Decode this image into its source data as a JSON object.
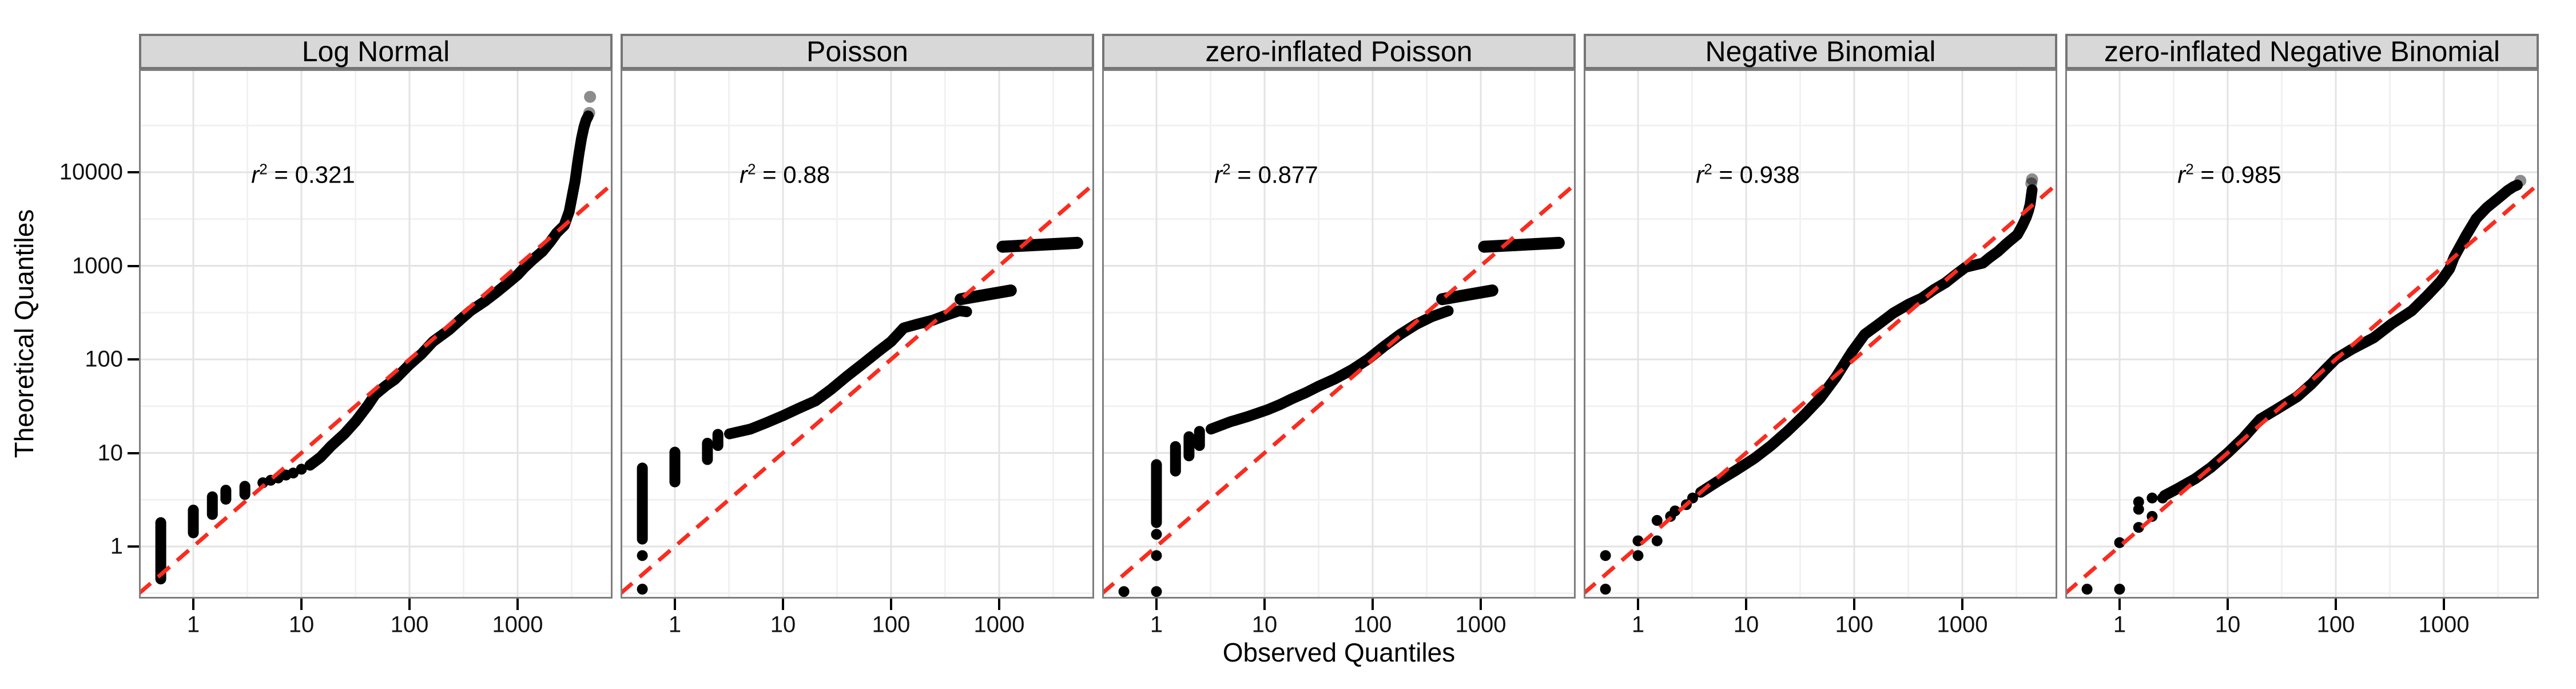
{
  "figure": {
    "x_axis_title": "Observed Quantiles",
    "y_axis_title": "Theoretical Quantiles"
  },
  "chart_data": {
    "type": "scatter",
    "subtype": "qq-plot-faceted",
    "grid": "on",
    "background": "white",
    "x_axis": {
      "title": "Observed Quantiles",
      "scale": "log10",
      "ticks": [
        1,
        10,
        100,
        1000
      ],
      "tick_labels": [
        "1",
        "10",
        "100",
        "1000"
      ],
      "range": [
        0.31,
        7550
      ]
    },
    "y_axis": {
      "title": "Theoretical Quantiles",
      "scale": "log10",
      "ticks": [
        1,
        10,
        100,
        1000,
        10000
      ],
      "tick_labels": [
        "1",
        "10",
        "100",
        "1000",
        "10000"
      ],
      "range": [
        0.28,
        126000
      ]
    },
    "reference_line": {
      "type": "identity y=x",
      "style": "dashed",
      "color": "#F92C1F"
    },
    "r2_template": {
      "var": "r",
      "sup": "2",
      "sep": " = "
    },
    "colors": {
      "point": "#000000",
      "ref_line": "#F92C1F",
      "strip_fill": "#D8D8D8",
      "strip_border": "#757575",
      "panel_border": "#7E7E7E",
      "grid_major": "#E3E3E3",
      "grid_minor": "#F1F1F1"
    },
    "panels": [
      {
        "label": "Log Normal",
        "r2": "0.321",
        "columns": [
          [
            0.5,
            0.45,
            1.8
          ],
          [
            1,
            1.4,
            2.45
          ],
          [
            1.5,
            2.2,
            3.4
          ],
          [
            2,
            3.2,
            4.0
          ],
          [
            3,
            3.6,
            4.4
          ]
        ],
        "dots": [
          [
            4.4,
            4.8
          ],
          [
            5.2,
            5.1
          ],
          [
            6.1,
            5.4
          ],
          [
            7.2,
            5.8
          ],
          [
            8.4,
            6.1
          ],
          [
            10,
            6.7
          ]
        ],
        "curve": [
          [
            12,
            7.4
          ],
          [
            15,
            9
          ],
          [
            19,
            12
          ],
          [
            25,
            16
          ],
          [
            32,
            22
          ],
          [
            41,
            32
          ],
          [
            48,
            42
          ],
          [
            60,
            52
          ],
          [
            73,
            61
          ],
          [
            100,
            88
          ],
          [
            130,
            115
          ],
          [
            165,
            155
          ],
          [
            230,
            205
          ],
          [
            300,
            270
          ],
          [
            368,
            331
          ],
          [
            500,
            420
          ],
          [
            650,
            530
          ],
          [
            832,
            670
          ],
          [
            1000,
            800
          ],
          [
            1150,
            955
          ],
          [
            1400,
            1180
          ],
          [
            1700,
            1430
          ],
          [
            2000,
            1800
          ],
          [
            2300,
            2250
          ],
          [
            2700,
            2700
          ],
          [
            3000,
            3800
          ],
          [
            3200,
            5600
          ],
          [
            3400,
            8000
          ],
          [
            3550,
            11500
          ],
          [
            3700,
            16000
          ],
          [
            3900,
            23000
          ],
          [
            4100,
            30000
          ],
          [
            4300,
            36000
          ],
          [
            4500,
            40000
          ]
        ],
        "segments": [],
        "fade_dots": [
          [
            4600,
            43000
          ],
          [
            4680,
            64000
          ]
        ]
      },
      {
        "label": "Poisson",
        "r2": "0.88",
        "columns": [
          [
            0.5,
            1.2,
            6.9
          ],
          [
            1,
            4.9,
            10.2
          ],
          [
            2,
            8.5,
            12.7
          ],
          [
            2.5,
            12,
            15.8
          ]
        ],
        "dots": [
          [
            0.5,
            0.35
          ],
          [
            0.5,
            0.8
          ]
        ],
        "curve": [
          [
            3.2,
            16
          ],
          [
            5,
            18
          ],
          [
            7,
            21
          ],
          [
            10,
            25
          ],
          [
            14,
            30
          ],
          [
            20,
            36
          ],
          [
            28,
            48
          ],
          [
            39,
            66
          ],
          [
            55,
            90
          ],
          [
            75,
            120
          ],
          [
            100,
            155
          ],
          [
            131,
            217
          ],
          [
            180,
            240
          ],
          [
            240,
            261
          ],
          [
            320,
            295
          ],
          [
            427,
            331
          ],
          [
            500,
            323
          ]
        ],
        "segments": [
          [
            440,
            440,
            1280,
            545
          ],
          [
            1075,
            1600,
            5270,
            1760
          ]
        ],
        "fade_dots": []
      },
      {
        "label": "zero-inflated Poisson",
        "r2": "0.877",
        "columns": [
          [
            1,
            1.8,
            7.5
          ],
          [
            1.5,
            6.4,
            11.7
          ],
          [
            2,
            9.3,
            14.9
          ],
          [
            2.5,
            12,
            17
          ]
        ],
        "dots": [
          [
            0.5,
            0.33
          ],
          [
            1,
            0.33
          ],
          [
            1,
            0.8
          ],
          [
            1,
            1.35
          ]
        ],
        "curve": [
          [
            3.2,
            18
          ],
          [
            4.8,
            21.5
          ],
          [
            7,
            24.5
          ],
          [
            10.7,
            29
          ],
          [
            14,
            33
          ],
          [
            18,
            38
          ],
          [
            24,
            44
          ],
          [
            32,
            52
          ],
          [
            45,
            62
          ],
          [
            65,
            78
          ],
          [
            90,
            100
          ],
          [
            130,
            140
          ],
          [
            180,
            185
          ],
          [
            250,
            235
          ],
          [
            350,
            285
          ],
          [
            480,
            325
          ],
          [
            500,
            330
          ]
        ],
        "segments": [
          [
            440,
            440,
            1280,
            545
          ],
          [
            1075,
            1600,
            5270,
            1760
          ]
        ],
        "fade_dots": []
      },
      {
        "label": "Negative Binomial",
        "r2": "0.938",
        "columns": [],
        "dots": [
          [
            0.5,
            0.35
          ],
          [
            0.5,
            0.8
          ],
          [
            1,
            0.8
          ],
          [
            1,
            1.15
          ],
          [
            1.5,
            1.15
          ],
          [
            1.5,
            1.9
          ],
          [
            2,
            2.1
          ],
          [
            2.2,
            2.4
          ],
          [
            2.8,
            2.8
          ],
          [
            3.2,
            3.3
          ]
        ],
        "curve": [
          [
            3.8,
            3.8
          ],
          [
            5.5,
            5
          ],
          [
            8,
            6.5
          ],
          [
            12,
            8.8
          ],
          [
            17,
            12
          ],
          [
            24,
            17
          ],
          [
            34,
            25
          ],
          [
            48,
            38
          ],
          [
            68,
            65
          ],
          [
            95,
            120
          ],
          [
            125,
            185
          ],
          [
            170,
            240
          ],
          [
            230,
            313
          ],
          [
            320,
            390
          ],
          [
            420,
            450
          ],
          [
            550,
            560
          ],
          [
            700,
            660
          ],
          [
            900,
            830
          ],
          [
            1070,
            966
          ],
          [
            1300,
            1020
          ],
          [
            1550,
            1070
          ],
          [
            1800,
            1230
          ],
          [
            2130,
            1420
          ],
          [
            2600,
            1750
          ],
          [
            3230,
            2150
          ],
          [
            3600,
            2700
          ],
          [
            3900,
            3290
          ],
          [
            4100,
            3900
          ],
          [
            4240,
            4550
          ],
          [
            4360,
            5790
          ],
          [
            4420,
            6500
          ]
        ],
        "segments": [],
        "fade_dots": [
          [
            4350,
            7600
          ],
          [
            4420,
            8400
          ]
        ]
      },
      {
        "label": "zero-inflated Negative Binomial",
        "r2": "0.985",
        "columns": [],
        "dots": [
          [
            0.5,
            0.35
          ],
          [
            1,
            0.35
          ],
          [
            1,
            1.1
          ],
          [
            1.5,
            1.6
          ],
          [
            1.5,
            2.5
          ],
          [
            1.5,
            3.0
          ],
          [
            2,
            2.1
          ],
          [
            2,
            3.3
          ],
          [
            2.5,
            3.3
          ]
        ],
        "curve": [
          [
            2.6,
            3.5
          ],
          [
            3.5,
            4.2
          ],
          [
            5,
            5.3
          ],
          [
            7,
            7
          ],
          [
            10,
            10
          ],
          [
            14,
            14.5
          ],
          [
            20,
            23
          ],
          [
            28,
            29
          ],
          [
            44,
            40
          ],
          [
            60,
            55
          ],
          [
            80,
            78
          ],
          [
            100,
            101
          ],
          [
            140,
            128
          ],
          [
            224,
            170
          ],
          [
            330,
            240
          ],
          [
            505,
            331
          ],
          [
            700,
            480
          ],
          [
            930,
            680
          ],
          [
            1130,
            930
          ],
          [
            1240,
            1230
          ],
          [
            1600,
            2100
          ],
          [
            1990,
            3190
          ],
          [
            2500,
            4200
          ],
          [
            3200,
            5300
          ],
          [
            3900,
            6400
          ],
          [
            4400,
            7000
          ],
          [
            4780,
            7300
          ]
        ],
        "segments": [],
        "fade_dots": [
          [
            5100,
            8100
          ]
        ]
      }
    ]
  }
}
